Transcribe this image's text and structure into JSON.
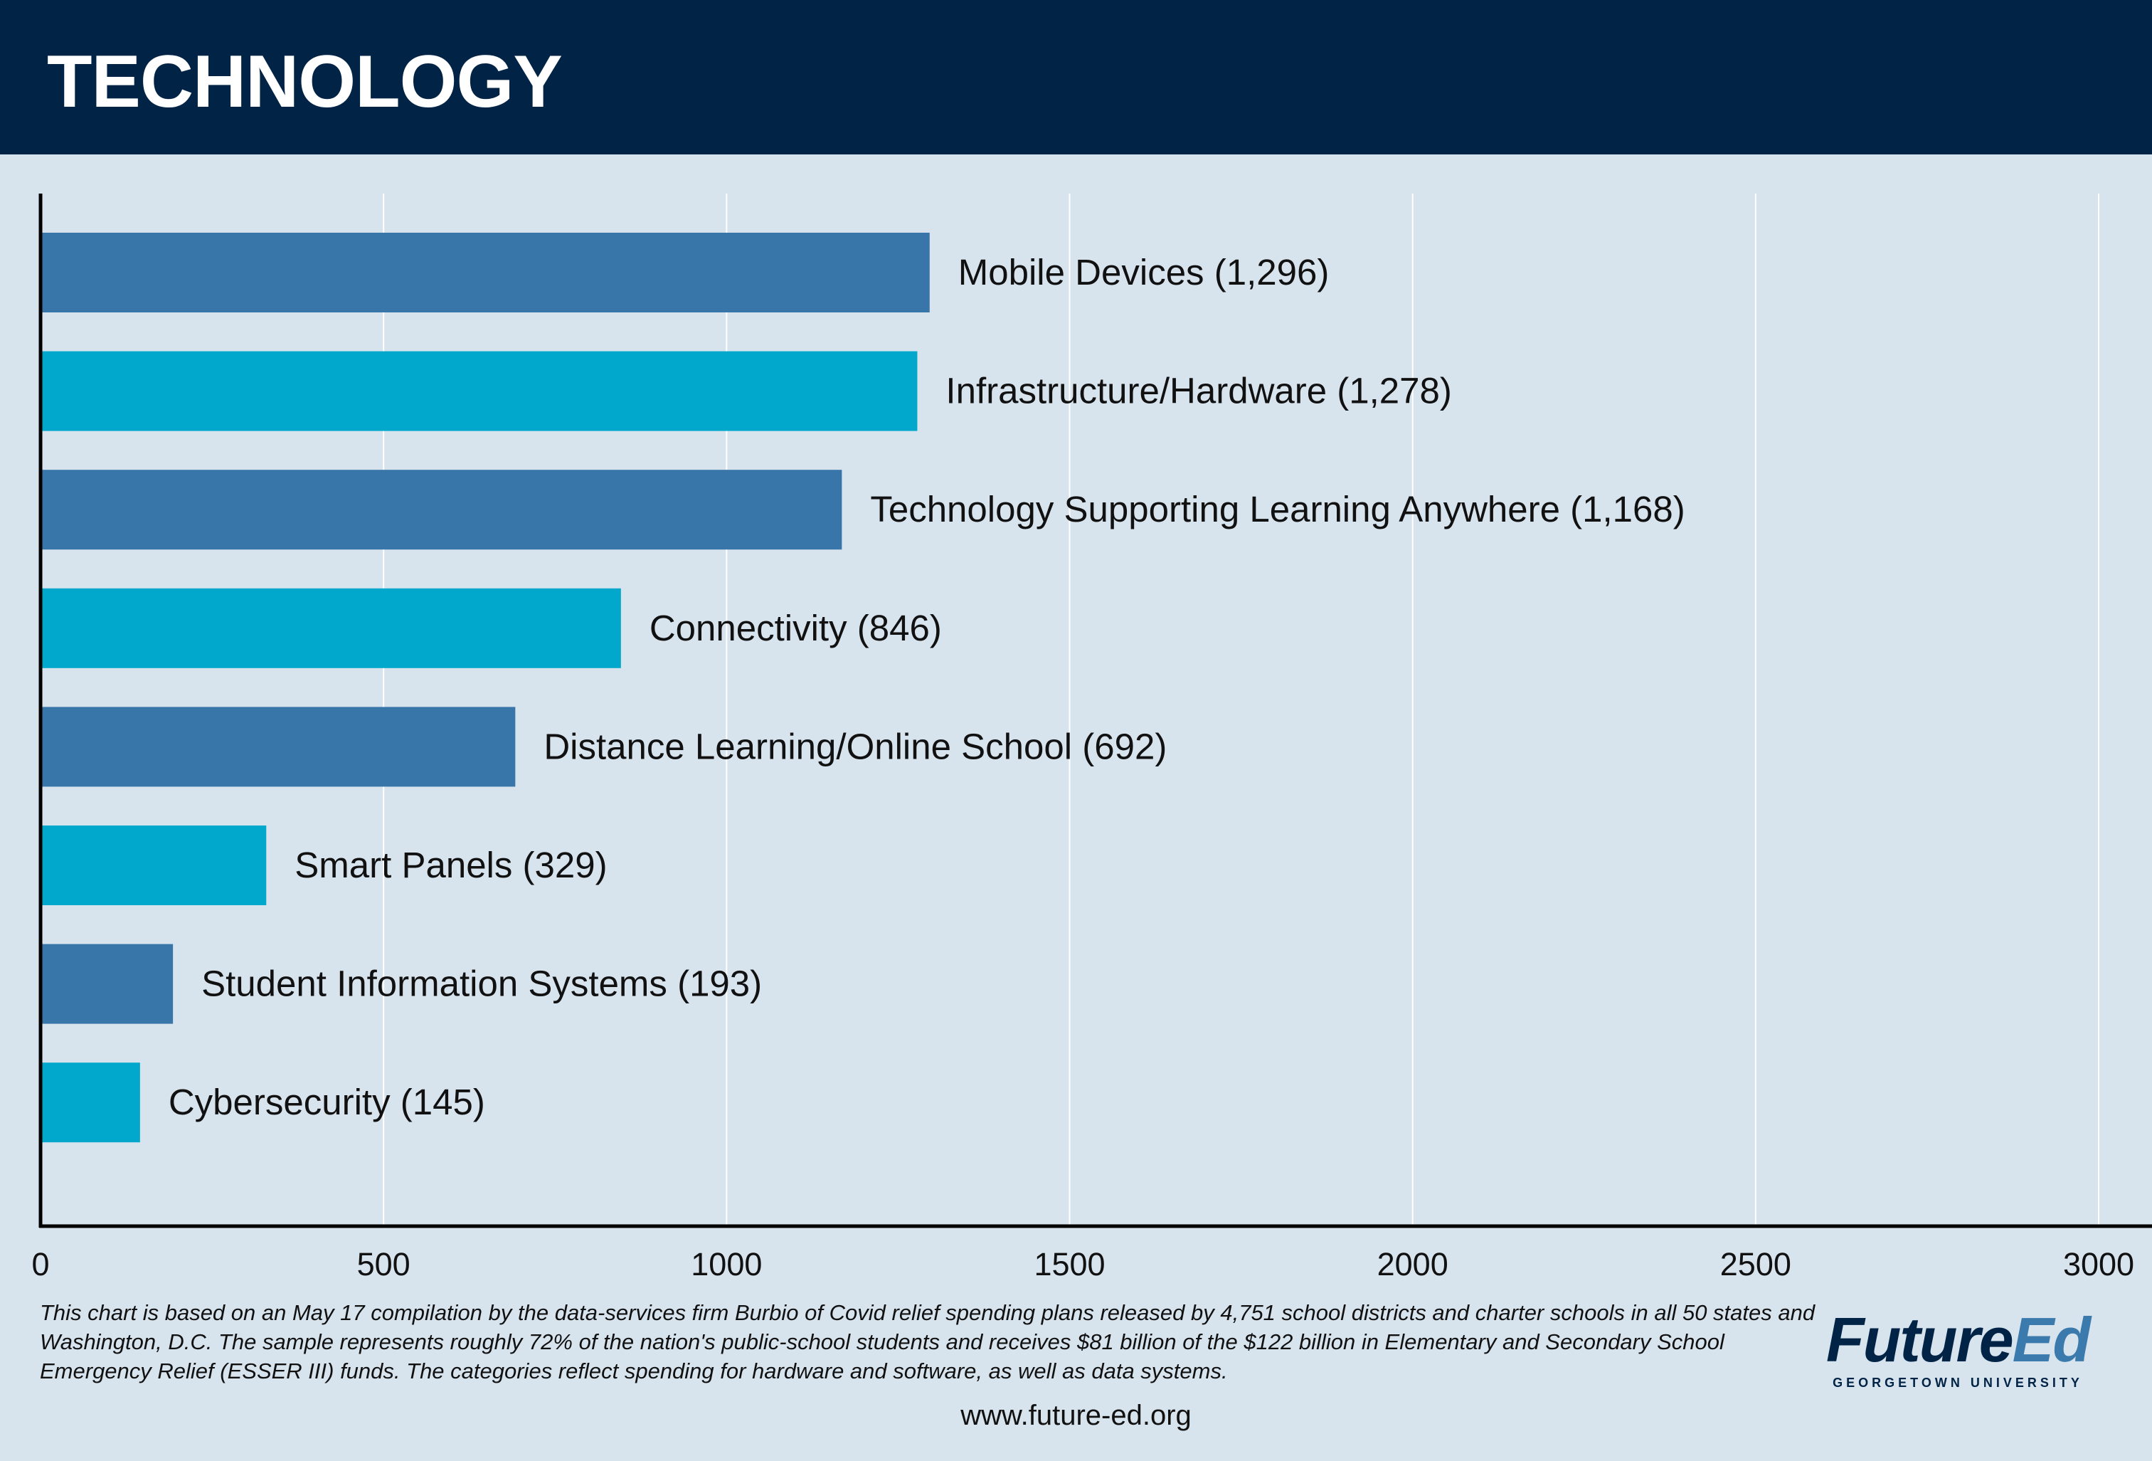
{
  "header": {
    "title": "TECHNOLOGY"
  },
  "chart_data": {
    "type": "bar",
    "orientation": "horizontal",
    "categories": [
      "Mobile Devices",
      "Infrastructure/Hardware",
      "Technology Supporting Learning Anywhere",
      "Connectivity",
      "Distance Learning/Online School",
      "Smart Panels",
      "Student Information Systems",
      "Cybersecurity"
    ],
    "values": [
      1296,
      1278,
      1168,
      846,
      692,
      329,
      193,
      145
    ],
    "data_labels": [
      "Mobile Devices (1,296)",
      "Infrastructure/Hardware (1,278)",
      "Technology Supporting Learning Anywhere (1,168)",
      "Connectivity (846)",
      "Distance Learning/Online School (692)",
      "Smart Panels (329)",
      "Student Information Systems (193)",
      "Cybersecurity (145)"
    ],
    "xlim": [
      0,
      3000
    ],
    "xticks": [
      0,
      500,
      1000,
      1500,
      2000,
      2500,
      3000
    ],
    "xtick_labels": [
      "0",
      "500",
      "1000",
      "1500",
      "2000",
      "2500",
      "3000"
    ],
    "grid": "vertical",
    "bar_colors": [
      "#3875a8",
      "#01a8cb"
    ],
    "background": "#d7e3ed"
  },
  "footnote": "This chart is based on an May 17 compilation by the data-services firm Burbio of Covid relief spending plans released by 4,751 school districts and charter schools in all 50 states and Washington, D.C. The sample represents roughly 72% of the nation's public-school students and receives $81 billion of the $122 billion in Elementary and Secondary School Emergency Relief (ESSER III) funds. The categories reflect spending for hardware and software, as well as data systems.",
  "website": "www.future-ed.org",
  "logo": {
    "future": "Future",
    "ed": "Ed",
    "subtitle": "GEORGETOWN UNIVERSITY",
    "colors": {
      "future": "#012346",
      "ed": "#3b7aac"
    }
  }
}
